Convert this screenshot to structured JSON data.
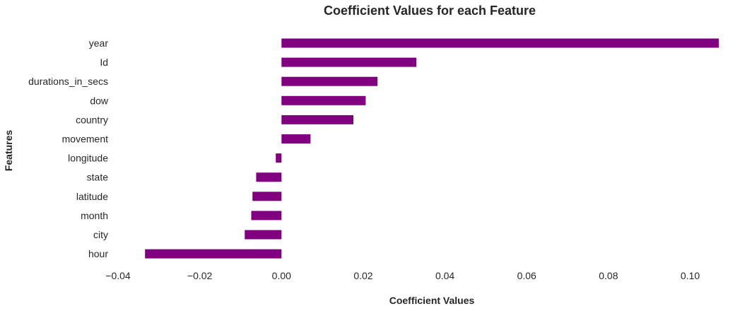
{
  "chart_data": {
    "type": "bar",
    "orientation": "horizontal",
    "title": "Coefficient Values for each Feature",
    "xlabel": "Coefficient Values",
    "ylabel": "Features",
    "categories": [
      "year",
      "Id",
      "durations_in_secs",
      "dow",
      "country",
      "movement",
      "longitude",
      "state",
      "latitude",
      "month",
      "city",
      "hour"
    ],
    "values": [
      0.107,
      0.033,
      0.0235,
      0.0206,
      0.0176,
      0.0071,
      -0.0014,
      -0.0062,
      -0.0071,
      -0.0074,
      -0.009,
      -0.0334
    ],
    "xlim": [
      -0.04,
      0.107
    ],
    "xticks": [
      -0.04,
      -0.02,
      0.0,
      0.02,
      0.04,
      0.06,
      0.08,
      0.1
    ],
    "xtick_labels": [
      "−0.04",
      "−0.02",
      "0.00",
      "0.02",
      "0.04",
      "0.06",
      "0.08",
      "0.10"
    ],
    "bar_color": "#800080",
    "grid": false,
    "legend": "none"
  }
}
